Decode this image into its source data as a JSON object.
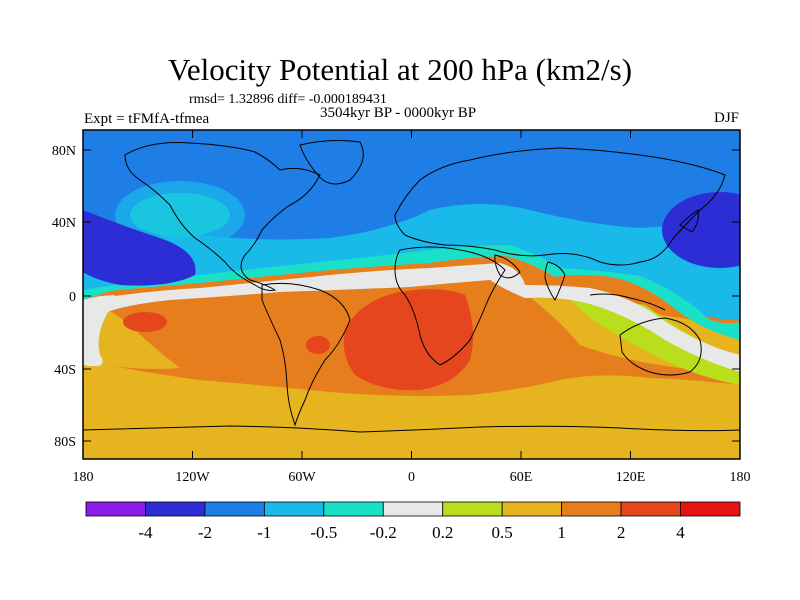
{
  "title": "Velocity Potential at 200 hPa (km2/s)",
  "stats": "rmsd= 1.32896 diff= -0.000189431",
  "experiment": "Expt = tFMfA-tfmea",
  "period": "3504kyr BP - 0000kyr BP",
  "season": "DJF",
  "lat_ticks": [
    "80N",
    "40N",
    "0",
    "40S",
    "80S"
  ],
  "lon_ticks": [
    "180",
    "120W",
    "60W",
    "0",
    "60E",
    "120E",
    "180"
  ],
  "colorbar": {
    "labels": [
      "-4",
      "-2",
      "-1",
      "-0.5",
      "-0.2",
      "0.2",
      "0.5",
      "1",
      "2",
      "4"
    ],
    "colors": [
      "#8a1ee6",
      "#2d2dd6",
      "#1e7ee6",
      "#19b9ea",
      "#19e0c6",
      "#e8e8e8",
      "#b8de1c",
      "#e6b41e",
      "#e67e1e",
      "#e6461e",
      "#e61414"
    ]
  },
  "palette": {
    "blue_deep": "#2d2dd6",
    "blue": "#1e7ee6",
    "blue_light": "#19b9ea",
    "cyan": "#19e0c6",
    "white_band": "#e8e8e8",
    "yellow_green": "#b8de1c",
    "gold": "#e6b41e",
    "orange": "#e67e1e",
    "red_orange": "#e6461e"
  }
}
